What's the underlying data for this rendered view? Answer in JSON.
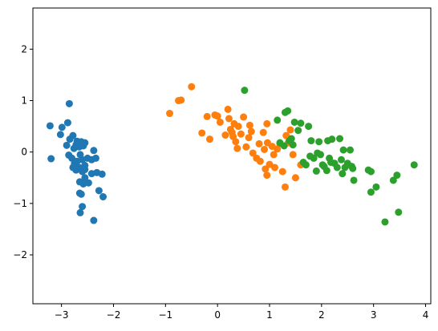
{
  "chart_data": {
    "type": "scatter",
    "title": "",
    "xlabel": "",
    "ylabel": "",
    "xlim": [
      -3.55,
      4.1
    ],
    "ylim": [
      -2.95,
      2.8
    ],
    "xticks": [
      {
        "value": -3,
        "label": "−3"
      },
      {
        "value": -2,
        "label": "−2"
      },
      {
        "value": -1,
        "label": "−1"
      },
      {
        "value": 0,
        "label": "0"
      },
      {
        "value": 1,
        "label": "1"
      },
      {
        "value": 2,
        "label": "2"
      },
      {
        "value": 3,
        "label": "3"
      },
      {
        "value": 4,
        "label": "4"
      }
    ],
    "yticks": [
      {
        "value": -2,
        "label": "−2"
      },
      {
        "value": -1,
        "label": "−1"
      },
      {
        "value": 0,
        "label": "0"
      },
      {
        "value": 1,
        "label": "1"
      },
      {
        "value": 2,
        "label": "2"
      }
    ],
    "grid": false,
    "legend": "none",
    "series": [
      {
        "color": "#1f77b4",
        "points": [
          [
            -3.22,
            0.51
          ],
          [
            -3.2,
            -0.13
          ],
          [
            -3.02,
            0.34
          ],
          [
            -2.99,
            0.48
          ],
          [
            -2.88,
            0.57
          ],
          [
            -2.85,
            0.94
          ],
          [
            -2.9,
            0.13
          ],
          [
            -2.84,
            0.25
          ],
          [
            -2.78,
            0.32
          ],
          [
            -2.76,
            0.07
          ],
          [
            -2.72,
            0.14
          ],
          [
            -2.7,
            0.21
          ],
          [
            -2.66,
            0.1
          ],
          [
            -2.62,
            0.2
          ],
          [
            -2.58,
            0.12
          ],
          [
            -2.55,
            0.18
          ],
          [
            -2.86,
            -0.06
          ],
          [
            -2.8,
            -0.12
          ],
          [
            -2.75,
            -0.22
          ],
          [
            -2.7,
            -0.18
          ],
          [
            -2.64,
            -0.05
          ],
          [
            -2.6,
            -0.15
          ],
          [
            -2.55,
            -0.26
          ],
          [
            -2.5,
            -0.12
          ],
          [
            -2.42,
            -0.15
          ],
          [
            -2.38,
            0.03
          ],
          [
            -2.34,
            -0.12
          ],
          [
            -2.78,
            -0.3
          ],
          [
            -2.72,
            -0.35
          ],
          [
            -2.66,
            -0.3
          ],
          [
            -2.6,
            -0.38
          ],
          [
            -2.55,
            -0.34
          ],
          [
            -2.42,
            -0.42
          ],
          [
            -2.32,
            -0.4
          ],
          [
            -2.22,
            -0.43
          ],
          [
            -2.65,
            -0.58
          ],
          [
            -2.58,
            -0.62
          ],
          [
            -2.55,
            -0.5
          ],
          [
            -2.48,
            -0.6
          ],
          [
            -2.65,
            -0.8
          ],
          [
            -2.62,
            -0.82
          ],
          [
            -2.28,
            -0.75
          ],
          [
            -2.2,
            -0.87
          ],
          [
            -2.6,
            -1.06
          ],
          [
            -2.64,
            -1.18
          ],
          [
            -2.38,
            -1.33
          ]
        ]
      },
      {
        "color": "#ff7f0e",
        "points": [
          [
            -0.92,
            0.75
          ],
          [
            -0.75,
            1.0
          ],
          [
            -0.7,
            1.01
          ],
          [
            -0.5,
            1.27
          ],
          [
            -0.3,
            0.37
          ],
          [
            -0.2,
            0.69
          ],
          [
            -0.15,
            0.25
          ],
          [
            -0.05,
            0.72
          ],
          [
            0.0,
            0.7
          ],
          [
            0.05,
            0.58
          ],
          [
            0.15,
            0.33
          ],
          [
            0.2,
            0.83
          ],
          [
            0.22,
            0.65
          ],
          [
            0.25,
            0.44
          ],
          [
            0.28,
            0.38
          ],
          [
            0.3,
            0.3
          ],
          [
            0.32,
            0.55
          ],
          [
            0.35,
            0.2
          ],
          [
            0.38,
            0.07
          ],
          [
            0.4,
            0.5
          ],
          [
            0.45,
            0.35
          ],
          [
            0.5,
            0.68
          ],
          [
            0.55,
            0.1
          ],
          [
            0.6,
            0.28
          ],
          [
            0.62,
            0.52
          ],
          [
            0.65,
            0.4
          ],
          [
            0.68,
            -0.02
          ],
          [
            0.75,
            -0.12
          ],
          [
            0.8,
            0.16
          ],
          [
            0.82,
            -0.18
          ],
          [
            0.88,
            0.38
          ],
          [
            0.9,
            0.05
          ],
          [
            0.92,
            -0.33
          ],
          [
            0.95,
            -0.45
          ],
          [
            0.96,
            0.18
          ],
          [
            1.0,
            -0.24
          ],
          [
            1.05,
            0.11
          ],
          [
            1.08,
            -0.05
          ],
          [
            1.1,
            -0.3
          ],
          [
            1.15,
            0.06
          ],
          [
            1.2,
            0.16
          ],
          [
            1.25,
            -0.38
          ],
          [
            1.3,
            -0.68
          ],
          [
            1.32,
            0.32
          ],
          [
            1.36,
            0.18
          ],
          [
            1.4,
            0.43
          ],
          [
            1.45,
            -0.05
          ],
          [
            1.5,
            -0.5
          ],
          [
            1.6,
            -0.25
          ],
          [
            0.95,
            0.55
          ]
        ]
      },
      {
        "color": "#2ca02c",
        "points": [
          [
            0.52,
            1.2
          ],
          [
            1.15,
            0.62
          ],
          [
            1.2,
            0.18
          ],
          [
            1.28,
            0.12
          ],
          [
            1.3,
            0.77
          ],
          [
            1.35,
            0.8
          ],
          [
            1.38,
            0.22
          ],
          [
            1.42,
            0.26
          ],
          [
            1.45,
            0.14
          ],
          [
            1.48,
            0.58
          ],
          [
            1.55,
            0.42
          ],
          [
            1.6,
            0.56
          ],
          [
            1.65,
            -0.2
          ],
          [
            1.7,
            -0.25
          ],
          [
            1.75,
            0.5
          ],
          [
            1.8,
            0.22
          ],
          [
            1.78,
            -0.08
          ],
          [
            1.85,
            -0.12
          ],
          [
            1.9,
            -0.37
          ],
          [
            1.92,
            -0.02
          ],
          [
            1.95,
            0.2
          ],
          [
            1.98,
            -0.05
          ],
          [
            2.02,
            -0.25
          ],
          [
            2.05,
            -0.28
          ],
          [
            2.1,
            -0.36
          ],
          [
            2.12,
            0.22
          ],
          [
            2.15,
            -0.12
          ],
          [
            2.18,
            -0.2
          ],
          [
            2.2,
            0.25
          ],
          [
            2.25,
            -0.22
          ],
          [
            2.3,
            -0.3
          ],
          [
            2.35,
            0.26
          ],
          [
            2.38,
            -0.15
          ],
          [
            2.4,
            -0.42
          ],
          [
            2.42,
            0.04
          ],
          [
            2.45,
            -0.3
          ],
          [
            2.5,
            -0.22
          ],
          [
            2.55,
            0.04
          ],
          [
            2.58,
            -0.28
          ],
          [
            2.6,
            -0.32
          ],
          [
            2.62,
            -0.55
          ],
          [
            2.9,
            -0.35
          ],
          [
            2.95,
            -0.78
          ],
          [
            3.05,
            -0.68
          ],
          [
            3.22,
            -1.36
          ],
          [
            3.38,
            -0.55
          ],
          [
            3.45,
            -0.45
          ],
          [
            3.48,
            -1.17
          ],
          [
            3.78,
            -0.25
          ],
          [
            2.95,
            -0.38
          ]
        ]
      }
    ]
  }
}
